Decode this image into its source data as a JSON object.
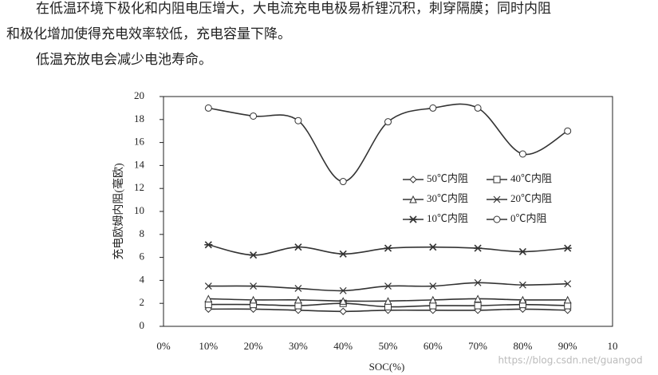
{
  "document": {
    "lines": [
      "在低温环境下极化和内阻电压增大，大电流充电电极易析锂沉积，刺穿隔膜；同时内阻",
      "和极化增加使得充电效率较低，充电容量下降。",
      "低温充放电会减少电池寿命。"
    ],
    "watermark": "https://blog.csdn.net/guangod"
  },
  "chart_data": {
    "type": "line",
    "y_label": "充电欧姆内阻(毫欧)",
    "x_label": "SOC(%)",
    "categories": [
      "0%",
      "10%",
      "20%",
      "30%",
      "40%",
      "50%",
      "60%",
      "70%",
      "80%",
      "90%",
      "10"
    ],
    "ylim": [
      0,
      20
    ],
    "yticks": [
      0,
      2,
      4,
      6,
      8,
      10,
      12,
      14,
      16,
      18,
      20
    ],
    "smooth": true,
    "legend": "center-right",
    "series": [
      {
        "name": "50℃内阻",
        "marker": "diamond",
        "color": "#333333",
        "values": [
          null,
          1.5,
          1.5,
          1.4,
          1.3,
          1.4,
          1.4,
          1.4,
          1.5,
          1.4,
          null
        ]
      },
      {
        "name": "40℃内阻",
        "marker": "square",
        "color": "#333333",
        "values": [
          null,
          1.9,
          1.9,
          1.8,
          2.0,
          1.7,
          1.8,
          1.8,
          1.9,
          1.8,
          null
        ]
      },
      {
        "name": "30℃内阻",
        "marker": "triangle",
        "color": "#333333",
        "values": [
          null,
          2.4,
          2.3,
          2.3,
          2.2,
          2.2,
          2.3,
          2.4,
          2.3,
          2.3,
          null
        ]
      },
      {
        "name": "20℃内阻",
        "marker": "x",
        "color": "#333333",
        "values": [
          null,
          3.5,
          3.5,
          3.3,
          3.1,
          3.5,
          3.5,
          3.8,
          3.6,
          3.7,
          null
        ]
      },
      {
        "name": "10℃内阻",
        "marker": "asterisk",
        "color": "#333333",
        "values": [
          null,
          7.1,
          6.2,
          6.9,
          6.3,
          6.8,
          6.9,
          6.8,
          6.5,
          6.8,
          null
        ]
      },
      {
        "name": "0℃内阻",
        "marker": "circle",
        "color": "#333333",
        "values": [
          null,
          19.0,
          18.3,
          17.9,
          12.6,
          17.8,
          19.0,
          19.0,
          15.0,
          17.0,
          null
        ]
      }
    ]
  }
}
